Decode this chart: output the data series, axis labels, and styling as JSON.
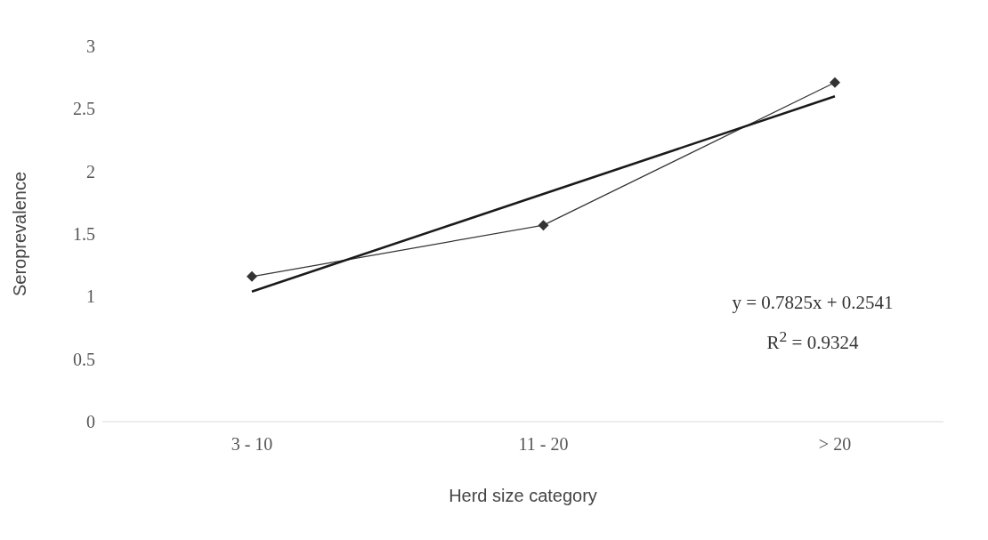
{
  "chart_data": {
    "type": "line",
    "xlabel": "Herd size category",
    "ylabel": "Seroprevalence",
    "categories": [
      "3 - 10",
      "11 -  20",
      "> 20"
    ],
    "series": [
      {
        "color": "#333333",
        "marker": "diamond",
        "values": [
          1.16,
          1.57,
          2.71
        ]
      },
      {
        "color": "#1a1a1a",
        "marker": "none",
        "values": [
          1.04,
          1.82,
          2.6
        ]
      }
    ],
    "ylim": [
      0,
      3
    ],
    "yticks": [
      0,
      0.5,
      1,
      1.5,
      2,
      2.5,
      3
    ],
    "annotations": [
      "y = 0.7825x + 0.2541",
      "R$^{2}$ = 0.9324"
    ]
  }
}
